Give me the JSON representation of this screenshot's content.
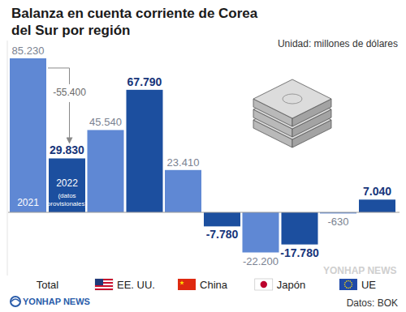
{
  "chart_data": {
    "type": "bar",
    "title": "Balanza en cuenta corriente de Corea del Sur por región",
    "unit_label": "Unidad: millones de dólares",
    "categories": [
      "Total",
      "EE. UU.",
      "China",
      "Japón",
      "UE"
    ],
    "series": [
      {
        "name": "2021",
        "color": "#5f88d4",
        "values": [
          85230,
          45540,
          23410,
          -22200,
          -630
        ],
        "value_labels": [
          "85.230",
          "45.540",
          "23.410",
          "-22.200",
          "-630"
        ]
      },
      {
        "name": "2022 (datos provisionales)",
        "color": "#1c4f9f",
        "values": [
          29830,
          67790,
          -7780,
          -17780,
          7040
        ],
        "value_labels": [
          "29.830",
          "67.790",
          "-7.780",
          "-17.780",
          "7.040"
        ]
      }
    ],
    "ylim": [
      -35000,
      95000
    ],
    "grid": false,
    "tick_labels": false,
    "data_labels": true,
    "annotations": [
      {
        "text": "-55.400"
      }
    ],
    "source": "Datos: BOK",
    "brand": "YONHAP NEWS",
    "watermark": "YONHAP NEWS"
  }
}
